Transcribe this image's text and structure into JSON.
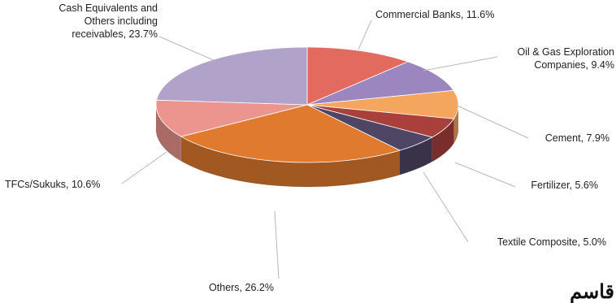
{
  "chart_data": {
    "type": "pie",
    "title": "",
    "slices": [
      {
        "name": "Commercial Banks",
        "value": 11.6,
        "label": "Commercial Banks, 11.6%",
        "color": "#e36a5f"
      },
      {
        "name": "Oil & Gas Exploration Companies",
        "value": 9.4,
        "label": [
          "Oil & Gas Exploration",
          "Companies, 9.4%"
        ],
        "color": "#9b86c0"
      },
      {
        "name": "Cement",
        "value": 7.9,
        "label": "Cement, 7.9%",
        "color": "#f4a55e"
      },
      {
        "name": "Fertilizer",
        "value": 5.6,
        "label": "Fertilizer, 5.6%",
        "color": "#a9403c"
      },
      {
        "name": "Textile Composite",
        "value": 5.0,
        "label": "Textile Composite, 5.0%",
        "color": "#4f4666"
      },
      {
        "name": "Others",
        "value": 26.2,
        "label": "Others, 26.2%",
        "color": "#e07a2e"
      },
      {
        "name": "TFCs/Sukuks",
        "value": 10.6,
        "label": "TFCs/Sukuks, 10.6%",
        "color": "#ec958f"
      },
      {
        "name": "Cash Equivalents and Others including receivables",
        "value": 23.7,
        "label": [
          "Cash Equivalents and",
          "Others including",
          "receivables, 23.7%"
        ],
        "color": "#b1a2ca"
      }
    ]
  },
  "footer_text": "قاسم"
}
